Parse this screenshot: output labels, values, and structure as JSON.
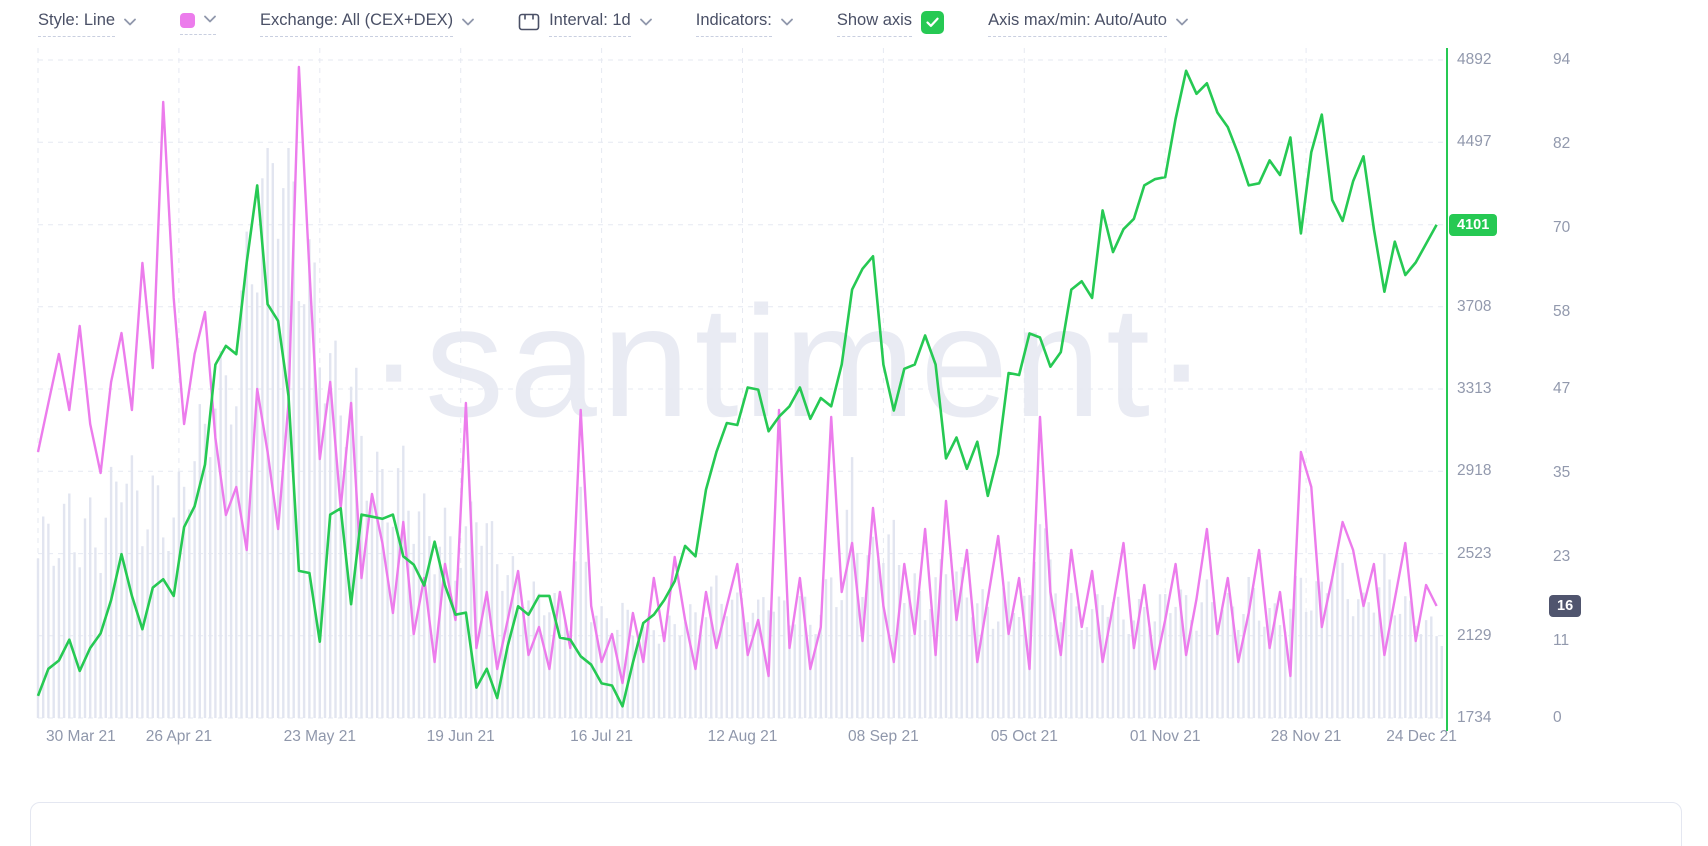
{
  "toolbar": {
    "style_label": "Style: Line",
    "swatch_color": "#ec7cec",
    "exchange_label": "Exchange: All (CEX+DEX)",
    "interval_label": "Interval: 1d",
    "indicators_label": "Indicators:",
    "show_axis_label": "Show axis",
    "axis_maxmin_label": "Axis max/min: Auto/Auto"
  },
  "colors": {
    "accent_green": "#26c953",
    "accent_pink": "#ec7cec",
    "bars": "#e2e5f0",
    "grid": "#e6e9f2",
    "axis_text": "#9299ad"
  },
  "watermark": "·santiment·",
  "chart_data": {
    "type": "line",
    "title": "",
    "x_axis": {
      "domain_days": 270,
      "tick_interval_days": 27,
      "labels": [
        "30 Mar 21",
        "26 Apr 21",
        "23 May 21",
        "19 Jun 21",
        "16 Jul 21",
        "12 Aug 21",
        "08 Sep 21",
        "05 Oct 21",
        "01 Nov 21",
        "28 Nov 21",
        "24 Dec 21"
      ]
    },
    "price_axis": {
      "side": "right",
      "color": "#26c953",
      "min": 1734,
      "max": 4892,
      "labels": [
        4892,
        4497,
        4101,
        3708,
        3313,
        2918,
        2523,
        2129,
        1734
      ],
      "badge": 4101
    },
    "secondary_axis": {
      "side": "far-right",
      "min": 0,
      "max": 94,
      "labels": [
        94,
        82,
        70,
        58,
        47,
        35,
        23,
        11,
        0
      ],
      "badge": 16,
      "badge_color": "#50556e"
    },
    "series": [
      {
        "name": "volume",
        "type": "bar",
        "color": "#e2e5f0",
        "axis": "hidden",
        "step_days": 2,
        "unit": "relative (100 = tallest bar)",
        "values": [
          28,
          33,
          30,
          36,
          30,
          34,
          30,
          38,
          45,
          40,
          35,
          38,
          35,
          33,
          42,
          45,
          50,
          58,
          55,
          62,
          75,
          88,
          95,
          100,
          92,
          85,
          75,
          68,
          60,
          55,
          58,
          48,
          42,
          40,
          38,
          42,
          36,
          34,
          30,
          32,
          28,
          30,
          38,
          32,
          28,
          25,
          24,
          22,
          20,
          21,
          19,
          18,
          35,
          20,
          17,
          16,
          18,
          16,
          15,
          16,
          15,
          16,
          18,
          17,
          20,
          22,
          21,
          19,
          20,
          18,
          22,
          19,
          18,
          20,
          17,
          18,
          24,
          22,
          42,
          24,
          28,
          32,
          30,
          24,
          22,
          20,
          22,
          28,
          24,
          22,
          20,
          19,
          18,
          22,
          20,
          19,
          40,
          24,
          20,
          19,
          18,
          17,
          22,
          19,
          18,
          17,
          19,
          18,
          20,
          22,
          19,
          18,
          21,
          20,
          19,
          18,
          22,
          19,
          18,
          17,
          19,
          24,
          20,
          22,
          28,
          24,
          21,
          19,
          22,
          25,
          21,
          19,
          18,
          16,
          15
        ]
      },
      {
        "name": "secondary-metric",
        "type": "line",
        "color": "#ec7cec",
        "axis": "secondary",
        "step_days": 2,
        "values": [
          38,
          45,
          52,
          44,
          56,
          42,
          35,
          48,
          55,
          44,
          65,
          50,
          88,
          60,
          42,
          52,
          58,
          40,
          29,
          33,
          24,
          47,
          38,
          27,
          45,
          93,
          64,
          37,
          48,
          30,
          45,
          20,
          32,
          25,
          15,
          28,
          12,
          20,
          8,
          22,
          14,
          45,
          10,
          18,
          7,
          14,
          21,
          9,
          13,
          7,
          18,
          10,
          44,
          16,
          8,
          12,
          5,
          15,
          8,
          20,
          11,
          23,
          14,
          7,
          18,
          10,
          16,
          22,
          9,
          14,
          6,
          44,
          10,
          20,
          7,
          13,
          43,
          18,
          25,
          11,
          30,
          16,
          8,
          22,
          12,
          27,
          9,
          31,
          14,
          24,
          8,
          17,
          26,
          12,
          20,
          7,
          43,
          18,
          9,
          24,
          13,
          21,
          8,
          16,
          25,
          10,
          19,
          7,
          14,
          22,
          9,
          17,
          27,
          12,
          20,
          8,
          15,
          24,
          10,
          18,
          6,
          38,
          33,
          13,
          20,
          28,
          24,
          16,
          22,
          9,
          17,
          25,
          11,
          19,
          16
        ]
      },
      {
        "name": "price",
        "type": "line",
        "color": "#26c953",
        "axis": "price",
        "step_days": 2,
        "values": [
          1840,
          1970,
          2010,
          2110,
          1960,
          2070,
          2140,
          2300,
          2520,
          2320,
          2160,
          2360,
          2400,
          2320,
          2650,
          2750,
          2950,
          3430,
          3520,
          3480,
          3920,
          4290,
          3720,
          3640,
          3280,
          2440,
          2430,
          2100,
          2710,
          2740,
          2280,
          2710,
          2700,
          2690,
          2710,
          2510,
          2470,
          2370,
          2580,
          2370,
          2230,
          2240,
          1880,
          1970,
          1830,
          2080,
          2270,
          2230,
          2320,
          2320,
          2120,
          2110,
          2030,
          1990,
          1900,
          1890,
          1790,
          2000,
          2190,
          2230,
          2300,
          2390,
          2560,
          2510,
          2830,
          3010,
          3150,
          3140,
          3320,
          3310,
          3110,
          3180,
          3230,
          3320,
          3170,
          3270,
          3230,
          3430,
          3790,
          3890,
          3950,
          3430,
          3210,
          3410,
          3430,
          3570,
          3430,
          2980,
          3080,
          2930,
          3060,
          2800,
          3000,
          3390,
          3380,
          3580,
          3560,
          3420,
          3490,
          3790,
          3830,
          3750,
          4170,
          3970,
          4080,
          4130,
          4290,
          4320,
          4330,
          4610,
          4840,
          4730,
          4780,
          4640,
          4570,
          4440,
          4290,
          4300,
          4410,
          4340,
          4520,
          4060,
          4450,
          4630,
          4220,
          4120,
          4310,
          4430,
          4080,
          3780,
          4020,
          3860,
          3920,
          4010,
          4101
        ]
      }
    ]
  }
}
